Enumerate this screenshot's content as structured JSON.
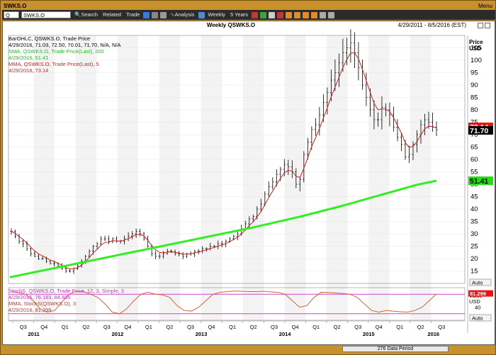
{
  "window": {
    "title": "SWKS.O",
    "menu_label": "Menu"
  },
  "toolbar": {
    "symbol_value": "SWKS.O",
    "symbol_type": "Q",
    "search_label": "Search",
    "related_label": "Related",
    "trade_label": "Trade",
    "analysis_label": "Analysis",
    "interval_label": "Weekly",
    "range_label": "5 Years"
  },
  "chart_header": {
    "title": "Weekly QSWKS.O",
    "date_range": "4/29/2011 - 8/5/2016 (EST)"
  },
  "legend_main": {
    "line1": "BarOHLC, QSWKS.O, Trade Price",
    "line2": "4/29/2016, 71.03, 72.50, 70.01, 71.70, N/A, N/A",
    "line3": "SMA, QSWKS.O, Trade Price(Last),  200",
    "line4": "4/29/2016, 51.41",
    "line5": "MMA, QSWKS.O, Trade Price(Last),  5",
    "line6": "4/29/2016, 73.14"
  },
  "legend_stoch": {
    "line1": "StochS, QSWKS.O, Trade Price,  12, 3, Simple, 3",
    "line2": "4/29/2016, 76.183, 84.605",
    "line3": "MMA, StochS(QSWKS.O),  3",
    "line4": "4/29/2016, 81.299"
  },
  "price_axis": {
    "title_line1": "Price",
    "title_line2": "USD",
    "auto_label": "Auto"
  },
  "stoch_axis": {
    "title_line1": "Value",
    "title_line2": "USD",
    "auto_label": "Auto"
  },
  "badges": {
    "mma": "73.14",
    "last": "71.70",
    "sma": "51.41",
    "stoch": "81.299"
  },
  "footer": {
    "period_label": "276 Data Period"
  },
  "colors": {
    "bar": "#000000",
    "sma": "#33ee22",
    "mma": "#cc2222",
    "stoch_line": "#cc6633",
    "stoch_band": "#cc44cc",
    "frame": "#c9912d"
  },
  "chart_data": {
    "type": "bar",
    "price_ylim": [
      10,
      110
    ],
    "price_ticks": [
      15,
      20,
      25,
      30,
      35,
      40,
      45,
      50,
      55,
      60,
      65,
      70,
      75,
      80,
      85,
      90,
      95,
      100,
      105
    ],
    "stoch_ticks": [
      40
    ],
    "stoch_bands": [
      80,
      20
    ],
    "x_quarter_labels": [
      "Q3",
      "Q4",
      "Q1",
      "Q2",
      "Q3",
      "Q4",
      "Q1",
      "Q2",
      "Q3",
      "Q4",
      "Q1",
      "Q2",
      "Q3",
      "Q4",
      "Q1",
      "Q2",
      "Q3",
      "Q4",
      "Q1",
      "Q2",
      "Q3"
    ],
    "x_year_labels": [
      "2011",
      "2012",
      "2013",
      "2014",
      "2015",
      "2016"
    ],
    "close_series": [
      31,
      29,
      27,
      26,
      24,
      22,
      21,
      20,
      20,
      19,
      18,
      18,
      17,
      16,
      15,
      15,
      16,
      17,
      19,
      21,
      23,
      25,
      26,
      28,
      28,
      27,
      28,
      27,
      27,
      28,
      29,
      30,
      31,
      30,
      28,
      25,
      22,
      21,
      21,
      22,
      23,
      23,
      22,
      22,
      21,
      22,
      22,
      23,
      23,
      24,
      24,
      25,
      25,
      26,
      26,
      27,
      28,
      29,
      30,
      32,
      34,
      36,
      37,
      40,
      42,
      46,
      49,
      51,
      54,
      56,
      58,
      57,
      55,
      50,
      52,
      62,
      67,
      72,
      74,
      78,
      83,
      87,
      92,
      95,
      99,
      103,
      105,
      107,
      103,
      97,
      90,
      85,
      80,
      76,
      76,
      81,
      80,
      78,
      73,
      69,
      66,
      61,
      62,
      66,
      70,
      74,
      76,
      75,
      73,
      72
    ],
    "sma_series": [
      12.5,
      13.3,
      14.1,
      14.9,
      15.7,
      16.5,
      17.3,
      18.1,
      18.9,
      19.7,
      20.5,
      21.3,
      22.1,
      22.9,
      23.7,
      24.5,
      25.3,
      26.1,
      26.9,
      27.7,
      28.5,
      29.3,
      30.1,
      30.9,
      31.7,
      32.5,
      33.4,
      34.3,
      35.2,
      36.1,
      37.0,
      38.0,
      39.0,
      40.0,
      41.0,
      42.1,
      43.2,
      44.3,
      45.4,
      46.5,
      47.6,
      48.7,
      49.8,
      50.6,
      51.4
    ],
    "stoch_series": [
      88,
      85,
      80,
      60,
      35,
      25,
      30,
      55,
      80,
      88,
      88,
      80,
      70,
      50,
      25,
      20,
      35,
      60,
      80,
      86,
      80,
      78,
      70,
      45,
      30,
      28,
      40,
      60,
      80,
      86,
      88,
      90,
      89,
      88,
      88,
      89,
      87,
      86,
      80,
      60,
      40,
      45,
      70,
      86,
      85,
      84,
      82,
      80,
      70,
      50,
      30,
      25,
      30,
      28,
      26,
      25,
      30,
      40,
      60,
      81
    ]
  }
}
